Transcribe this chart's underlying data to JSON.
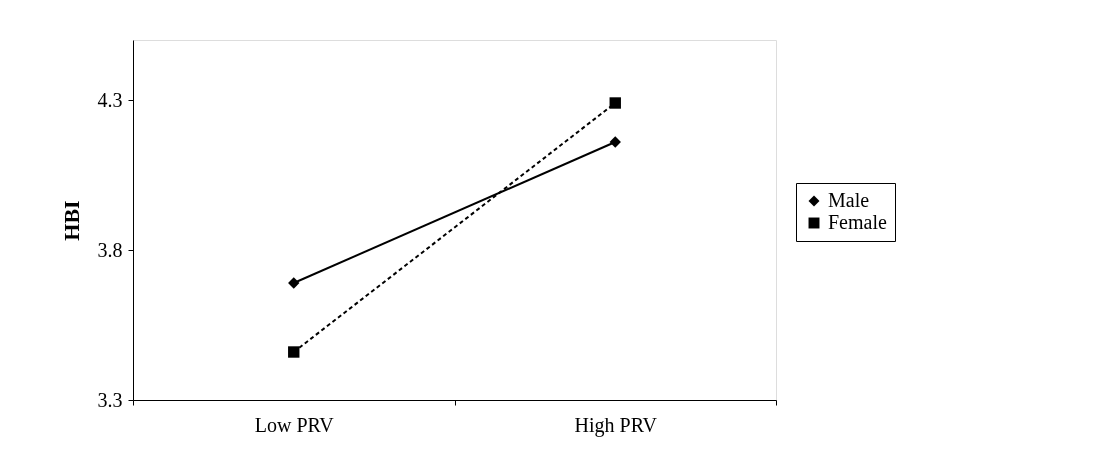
{
  "chart_data": {
    "type": "line",
    "ylabel": "HBI",
    "categories": [
      "Low PRV",
      "High PRV"
    ],
    "series": [
      {
        "name": "Male",
        "color": "#000000",
        "values": [
          3.69,
          4.16
        ],
        "marker": "diamond",
        "line_style": "solid"
      },
      {
        "name": "Female",
        "color": "#000000",
        "values": [
          3.46,
          4.29
        ],
        "marker": "square",
        "line_style": "dashed"
      }
    ],
    "ylim": [
      3.3,
      4.5
    ],
    "yticks": [
      3.3,
      3.8,
      4.3
    ],
    "grid": false,
    "legend": "right"
  }
}
